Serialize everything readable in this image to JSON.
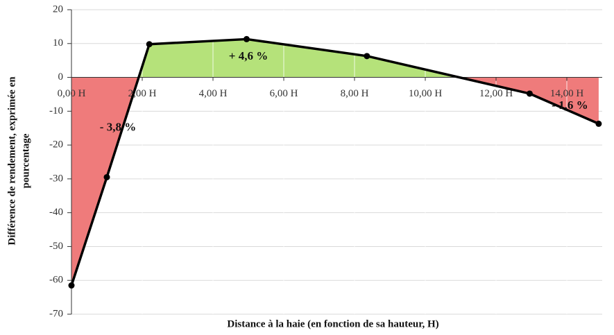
{
  "chart_data": {
    "type": "area-line",
    "x_label": "Distance à la haie (en fonction de sa hauteur, H)",
    "y_label": [
      "Différence de rendement, exprimée en",
      "pourcentage"
    ],
    "x": [
      0,
      1,
      2.2,
      4.95,
      8.35,
      12.95,
      14.9
    ],
    "series": [
      {
        "name": "Différence de rendement",
        "color": "#000000",
        "values": [
          -61.5,
          -29.5,
          9.8,
          11.3,
          6.3,
          -4.8,
          -13.7
        ]
      }
    ],
    "positive_color": "#b5e27a",
    "negative_color": "#ef7b7b",
    "xlim": [
      0,
      15
    ],
    "xticks": [
      {
        "value": 0,
        "label": "0,00 H"
      },
      {
        "value": 2,
        "label": "2,00 H"
      },
      {
        "value": 4,
        "label": "4,00 H"
      },
      {
        "value": 6,
        "label": "6,00 H"
      },
      {
        "value": 8,
        "label": "8,00 H"
      },
      {
        "value": 10,
        "label": "10,00 H"
      },
      {
        "value": 12,
        "label": "12,00 H"
      },
      {
        "value": 14,
        "label": "14,00 H"
      }
    ],
    "ylim": [
      -70,
      20
    ],
    "yticks": [
      -70,
      -60,
      -50,
      -40,
      -30,
      -20,
      -10,
      0,
      10,
      20
    ],
    "grid": true,
    "annotations": [
      {
        "text": "+ 4,6 %",
        "x": 5,
        "y": 6
      },
      {
        "text": "- 3,8 %",
        "x": 0.8,
        "y": -15
      },
      {
        "text": "- 1,6 %",
        "x": 14.6,
        "y": -8.5
      }
    ]
  }
}
